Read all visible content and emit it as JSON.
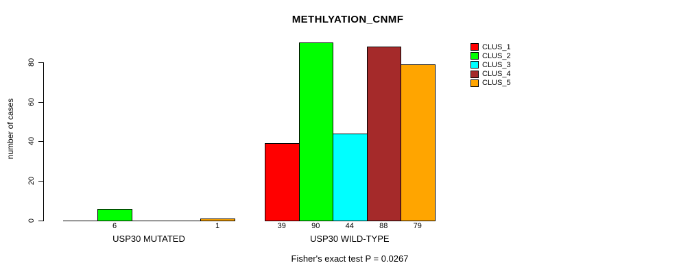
{
  "chart_data": {
    "type": "bar",
    "title": "METHLYATION_CNMF",
    "ylabel": "number of cases",
    "xlabel": "",
    "annotation": "Fisher's exact test P = 0.0267",
    "series_names": [
      "CLUS_1",
      "CLUS_2",
      "CLUS_3",
      "CLUS_4",
      "CLUS_5"
    ],
    "colors": [
      "#FF0000",
      "#00FF00",
      "#00FFFF",
      "#A52A2A",
      "#FFA500"
    ],
    "groups": [
      {
        "label": "USP30 MUTATED",
        "values": [
          0,
          6,
          0,
          0,
          1
        ],
        "bar_labels": [
          "",
          "6",
          "",
          "",
          "1"
        ]
      },
      {
        "label": "USP30 WILD-TYPE",
        "values": [
          39,
          90,
          44,
          88,
          79
        ],
        "bar_labels": [
          "39",
          "90",
          "44",
          "88",
          "79"
        ]
      }
    ],
    "yticks": [
      0,
      20,
      40,
      60,
      80
    ],
    "ylim": [
      0,
      90
    ],
    "grid": false,
    "legend_position": "right-outside",
    "legend_items": [
      {
        "label": "CLUS_1",
        "color": "#FF0000"
      },
      {
        "label": "CLUS_2",
        "color": "#00FF00"
      },
      {
        "label": "CLUS_3",
        "color": "#00FFFF"
      },
      {
        "label": "CLUS_4",
        "color": "#A52A2A"
      },
      {
        "label": "CLUS_5",
        "color": "#FFA500"
      }
    ]
  }
}
